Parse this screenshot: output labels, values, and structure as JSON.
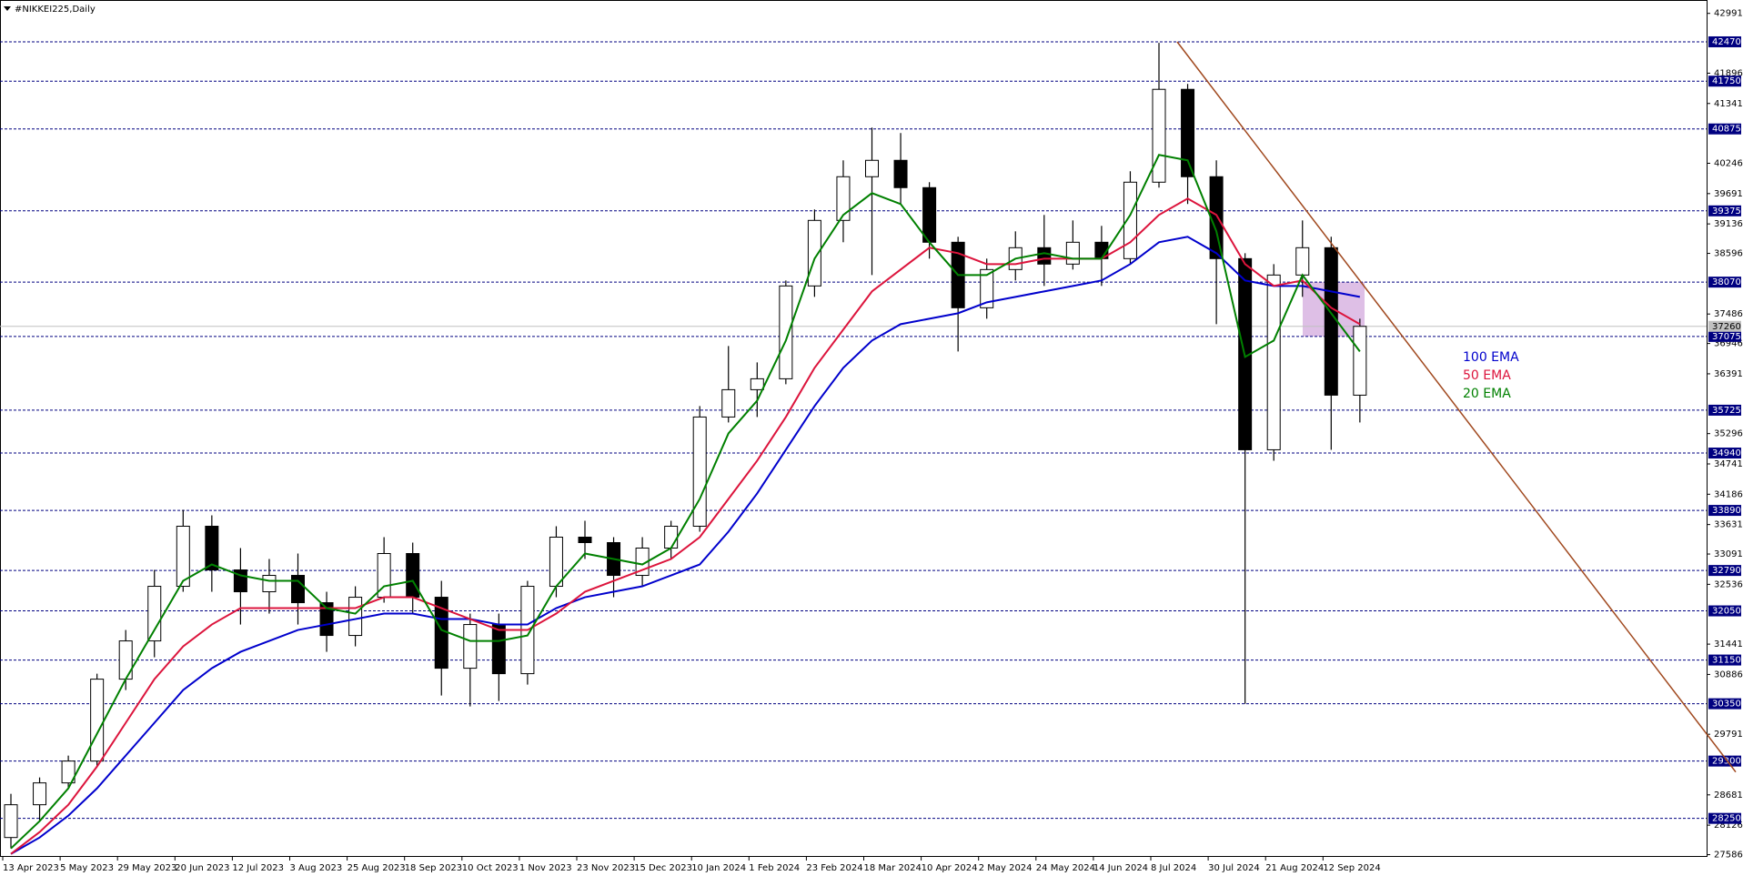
{
  "chart_data": {
    "type": "candlestick",
    "title": "#NIKKEI225,Daily",
    "categories": [
      "13 Apr 2023",
      null,
      "5 May 2023",
      null,
      "29 May 2023",
      null,
      "20 Jun 2023",
      null,
      "12 Jul 2023",
      null,
      "3 Aug 2023",
      null,
      "25 Aug 2023",
      null,
      "18 Sep 2023",
      null,
      "10 Oct 2023",
      null,
      "1 Nov 2023",
      null,
      "23 Nov 2023",
      null,
      "15 Dec 2023",
      null,
      "10 Jan 2024",
      null,
      "1 Feb 2024",
      null,
      "23 Feb 2024",
      null,
      "18 Mar 2024",
      null,
      "10 Apr 2024",
      null,
      "2 May 2024",
      null,
      "24 May 2024",
      null,
      "14 Jun 2024",
      null,
      "8 Jul 2024",
      null,
      "30 Jul 2024",
      null,
      "21 Aug 2024",
      null,
      "12 Sep 2024",
      null
    ],
    "open": [
      27900,
      28500,
      28900,
      29300,
      30800,
      31500,
      32500,
      33600,
      32800,
      32400,
      32700,
      32200,
      31600,
      32300,
      33100,
      32300,
      31000,
      31800,
      30900,
      32500,
      33400,
      33300,
      32700,
      33200,
      33600,
      35600,
      36100,
      36300,
      38000,
      39200,
      40000,
      40300,
      39800,
      38800,
      37600,
      38300,
      38700,
      38400,
      38800,
      38500,
      39900,
      41600,
      40000,
      38500,
      35000,
      38200,
      38700,
      36000
    ],
    "high": [
      28700,
      29000,
      29400,
      30900,
      31700,
      32800,
      33900,
      33800,
      33200,
      33000,
      33100,
      32400,
      32500,
      33400,
      33300,
      32600,
      32000,
      32000,
      32600,
      33600,
      33700,
      33400,
      33400,
      33700,
      35800,
      36900,
      36600,
      38100,
      39400,
      40300,
      40900,
      40800,
      39900,
      38900,
      38500,
      39000,
      39300,
      39200,
      39100,
      40100,
      42450,
      41700,
      40300,
      38600,
      38400,
      39200,
      38900,
      37400
    ],
    "low": [
      27700,
      28200,
      28800,
      29200,
      30600,
      31200,
      32400,
      32400,
      31800,
      32000,
      31800,
      31300,
      31400,
      32200,
      32000,
      30500,
      30300,
      30400,
      30700,
      32300,
      33000,
      32300,
      32500,
      33000,
      33500,
      35500,
      35600,
      36200,
      37800,
      38800,
      38200,
      39500,
      38500,
      36800,
      37400,
      38100,
      38000,
      38300,
      38000,
      38400,
      39800,
      39500,
      37300,
      30350,
      34800,
      37800,
      35000,
      35500
    ],
    "close": [
      28500,
      28900,
      29300,
      30800,
      31500,
      32500,
      33600,
      32800,
      32400,
      32700,
      32200,
      31600,
      32300,
      33100,
      32300,
      31000,
      31800,
      30900,
      32500,
      33400,
      33300,
      32700,
      33200,
      33600,
      35600,
      36100,
      36300,
      38000,
      39200,
      40000,
      40300,
      39800,
      38800,
      37600,
      38300,
      38700,
      38400,
      38800,
      38500,
      39900,
      41600,
      40000,
      38500,
      35000,
      38200,
      38700,
      36000,
      37260
    ],
    "series": [
      {
        "name": "100 EMA",
        "color": "#0000cc",
        "values": [
          27600,
          27900,
          28300,
          28800,
          29400,
          30000,
          30600,
          31000,
          31300,
          31500,
          31700,
          31800,
          31900,
          32000,
          32000,
          31900,
          31900,
          31800,
          31800,
          32100,
          32300,
          32400,
          32500,
          32700,
          32900,
          33500,
          34200,
          35000,
          35800,
          36500,
          37000,
          37300,
          37400,
          37500,
          37700,
          37800,
          37900,
          38000,
          38100,
          38400,
          38800,
          38900,
          38600,
          38100,
          38000,
          38000,
          37900,
          37800
        ]
      },
      {
        "name": "50 EMA",
        "color": "#dc143c",
        "values": [
          27600,
          28000,
          28500,
          29200,
          30000,
          30800,
          31400,
          31800,
          32100,
          32100,
          32100,
          32100,
          32100,
          32300,
          32300,
          32100,
          31900,
          31700,
          31700,
          32000,
          32400,
          32600,
          32800,
          33000,
          33400,
          34100,
          34800,
          35600,
          36500,
          37200,
          37900,
          38300,
          38700,
          38600,
          38400,
          38400,
          38500,
          38500,
          38500,
          38800,
          39300,
          39600,
          39300,
          38400,
          38000,
          38100,
          37600,
          37300
        ]
      },
      {
        "name": "20 EMA",
        "color": "#008000",
        "values": [
          27700,
          28200,
          28800,
          29800,
          30800,
          31700,
          32600,
          32900,
          32700,
          32600,
          32600,
          32100,
          32000,
          32500,
          32600,
          31700,
          31500,
          31500,
          31600,
          32500,
          33100,
          33000,
          32900,
          33200,
          34100,
          35300,
          35900,
          37000,
          38500,
          39300,
          39700,
          39500,
          38800,
          38200,
          38200,
          38500,
          38600,
          38500,
          38500,
          39300,
          40400,
          40300,
          39000,
          36700,
          37000,
          38200,
          37500,
          36800
        ]
      }
    ],
    "ylim": [
      27545,
      43236
    ],
    "yticks": [
      42991,
      41896,
      41341,
      40246,
      39691,
      39136,
      38596,
      37486,
      36946,
      36391,
      35296,
      34741,
      34186,
      33631,
      33091,
      32536,
      31441,
      30886,
      29791,
      28681,
      28126,
      27586
    ],
    "levels": [
      42470,
      41750,
      40875,
      39375,
      38070,
      37075,
      35725,
      34940,
      33890,
      32790,
      32050,
      31150,
      30350,
      29300,
      28250
    ],
    "level_color": "#000080",
    "current_price": 37260,
    "current_price_color": "#c0c0c0",
    "zone": [
      37075,
      38070
    ],
    "zone_color": "#d8b4e2",
    "trendline": {
      "values": [
        42470,
        29100
      ],
      "color": "#a0481e"
    }
  }
}
